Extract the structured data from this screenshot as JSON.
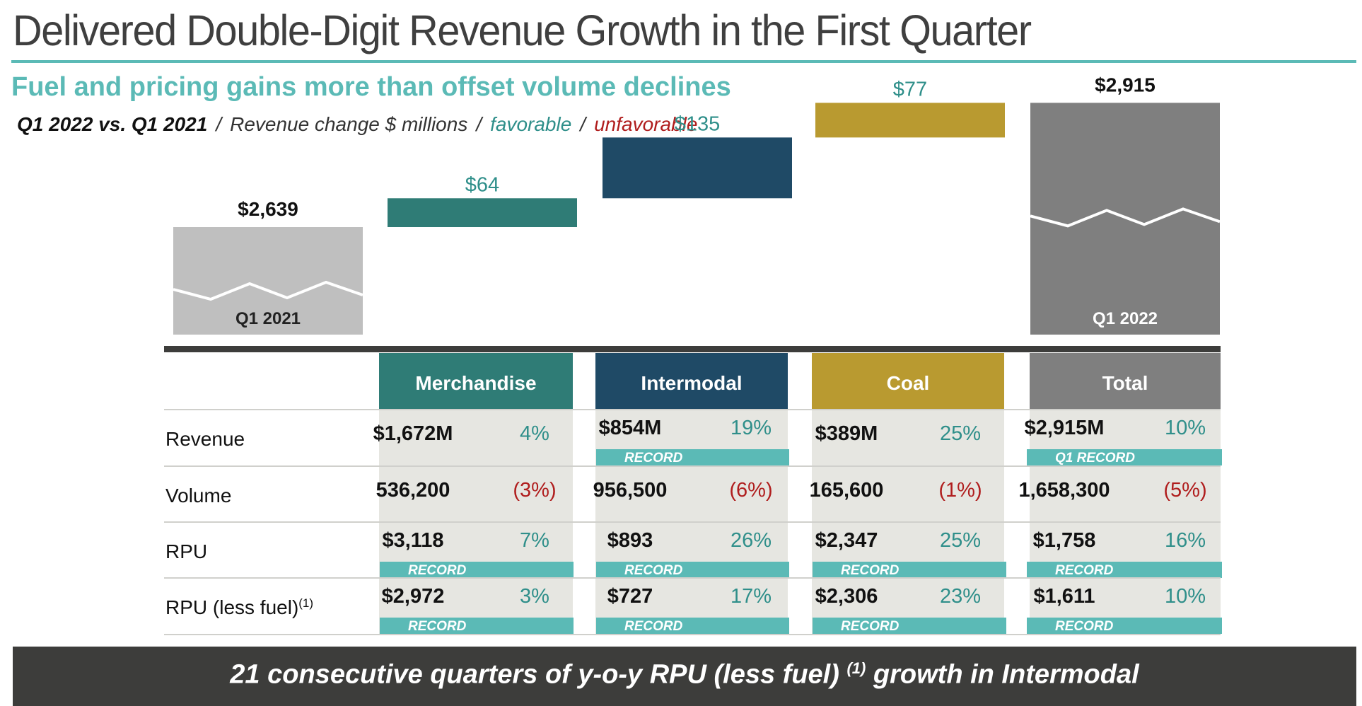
{
  "header": {
    "title": "Delivered Double-Digit Revenue Growth in the First Quarter",
    "subtitle": "Fuel and pricing gains more than offset volume declines",
    "legend": {
      "period": "Q1 2022 vs. Q1 2021",
      "separator": "/",
      "measure": "Revenue change $ millions",
      "favorable": "favorable",
      "unfavorable": "unfavorable"
    }
  },
  "colors": {
    "title": "#3f3f3f",
    "accent": "#5bbab6",
    "merchandise": "#2f7c76",
    "intermodal": "#1f4a66",
    "coal": "#b99a30",
    "total": "#7f7f7f",
    "start_bar": "#bfbfbf",
    "favorable": "#2f8f8a",
    "unfavorable": "#b01e1e",
    "cell_bg": "#e6e6e1",
    "footer": "#3d3d3b"
  },
  "chart_data": {
    "type": "bar",
    "subtype": "waterfall",
    "unit": "$ millions",
    "categories": [
      "Q1 2021",
      "Merchandise",
      "Intermodal",
      "Coal",
      "Q1 2022"
    ],
    "values": [
      2639,
      64,
      135,
      77,
      2915
    ],
    "roles": [
      "start",
      "delta",
      "delta",
      "delta",
      "end"
    ],
    "labels": [
      "$2,639",
      "$64",
      "$135",
      "$77",
      "$2,915"
    ],
    "bar_labels": [
      "Q1 2021",
      "",
      "",
      "",
      "Q1 2022"
    ],
    "axis_break": true,
    "grid": false
  },
  "table": {
    "columns": [
      "Merchandise",
      "Intermodal",
      "Coal",
      "Total"
    ],
    "rows": [
      {
        "label": "Revenue",
        "cells": [
          {
            "value": "$1,672M",
            "change": "4%",
            "tone": "favorable",
            "badge": ""
          },
          {
            "value": "$854M",
            "change": "19%",
            "tone": "favorable",
            "badge": "RECORD"
          },
          {
            "value": "$389M",
            "change": "25%",
            "tone": "favorable",
            "badge": ""
          },
          {
            "value": "$2,915M",
            "change": "10%",
            "tone": "favorable",
            "badge": "Q1 RECORD"
          }
        ]
      },
      {
        "label": "Volume",
        "cells": [
          {
            "value": "536,200",
            "change": "(3%)",
            "tone": "unfavorable",
            "badge": ""
          },
          {
            "value": "956,500",
            "change": "(6%)",
            "tone": "unfavorable",
            "badge": ""
          },
          {
            "value": "165,600",
            "change": "(1%)",
            "tone": "unfavorable",
            "badge": ""
          },
          {
            "value": "1,658,300",
            "change": "(5%)",
            "tone": "unfavorable",
            "badge": ""
          }
        ]
      },
      {
        "label": "RPU",
        "cells": [
          {
            "value": "$3,118",
            "change": "7%",
            "tone": "favorable",
            "badge": "RECORD"
          },
          {
            "value": "$893",
            "change": "26%",
            "tone": "favorable",
            "badge": "RECORD"
          },
          {
            "value": "$2,347",
            "change": "25%",
            "tone": "favorable",
            "badge": "RECORD"
          },
          {
            "value": "$1,758",
            "change": "16%",
            "tone": "favorable",
            "badge": "RECORD"
          }
        ]
      },
      {
        "label": "RPU (less fuel)",
        "footnote": "(1)",
        "cells": [
          {
            "value": "$2,972",
            "change": "3%",
            "tone": "favorable",
            "badge": "RECORD"
          },
          {
            "value": "$727",
            "change": "17%",
            "tone": "favorable",
            "badge": "RECORD"
          },
          {
            "value": "$2,306",
            "change": "23%",
            "tone": "favorable",
            "badge": "RECORD"
          },
          {
            "value": "$1,611",
            "change": "10%",
            "tone": "favorable",
            "badge": "RECORD"
          }
        ]
      }
    ]
  },
  "footer": {
    "text_before": "21 consecutive quarters of y-o-y RPU (less fuel)",
    "footnote": "(1)",
    "text_after": "growth in Intermodal"
  }
}
